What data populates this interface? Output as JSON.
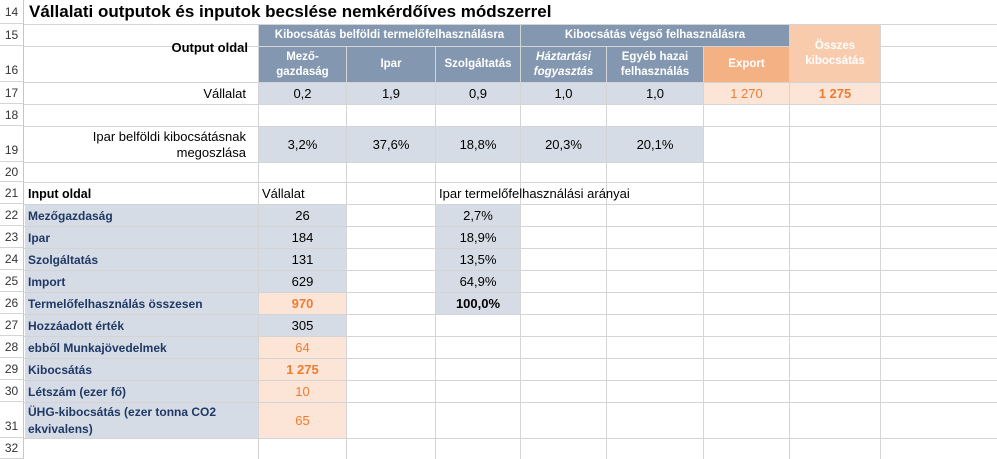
{
  "title": "Vállalati outputok és inputok becslése nemkérdőíves módszerrel",
  "row_numbers": [
    "14",
    "15",
    "16",
    "17",
    "18",
    "19",
    "20",
    "21",
    "22",
    "23",
    "24",
    "25",
    "26",
    "27",
    "28",
    "29",
    "30",
    "31",
    "32"
  ],
  "output": {
    "side_label": "Output oldal",
    "group1": "Kibocsátás belföldi termelőfelhasználásra",
    "group2": "Kibocsátás végső felhasználásra",
    "total_header": "Összes kibocsátás",
    "columns": [
      "Mező-gazdaság",
      "Ipar",
      "Szolgáltatás",
      "Háztartási fogyasztás",
      "Egyéb hazai felhasználás",
      "Export"
    ],
    "company_label": "Vállalat",
    "company_values": [
      "0,2",
      "1,9",
      "0,9",
      "1,0",
      "1,0",
      "1 270"
    ],
    "company_total": "1 275",
    "share_label": "Ipar belföldi kibocsátásnak megoszlása",
    "share_values": [
      "3,2%",
      "37,6%",
      "18,8%",
      "20,3%",
      "20,1%"
    ]
  },
  "input": {
    "side_label": "Input oldal",
    "company_header": "Vállalat",
    "ratio_header": "Ipar termelőfelhasználási arányai",
    "rows": [
      {
        "label": "Mezőgazdaság",
        "value": "26",
        "ratio": "2,7%"
      },
      {
        "label": "Ipar",
        "value": "184",
        "ratio": "18,9%"
      },
      {
        "label": "Szolgáltatás",
        "value": "131",
        "ratio": "13,5%"
      },
      {
        "label": "Import",
        "value": "629",
        "ratio": "64,9%"
      },
      {
        "label": "Termelőfelhasználás összesen",
        "value": "970",
        "ratio": "100,0%"
      },
      {
        "label": "Hozzáadott érték",
        "value": "305"
      },
      {
        "label": "ebből Munkajövedelmek",
        "value": "64"
      },
      {
        "label": "Kibocsátás",
        "value": "1 275"
      },
      {
        "label": "Létszám (ezer fő)",
        "value": "10"
      },
      {
        "label": "ÜHG-kibocsátás (ezer tonna CO2 ekvivalens)",
        "value": "65"
      }
    ]
  }
}
